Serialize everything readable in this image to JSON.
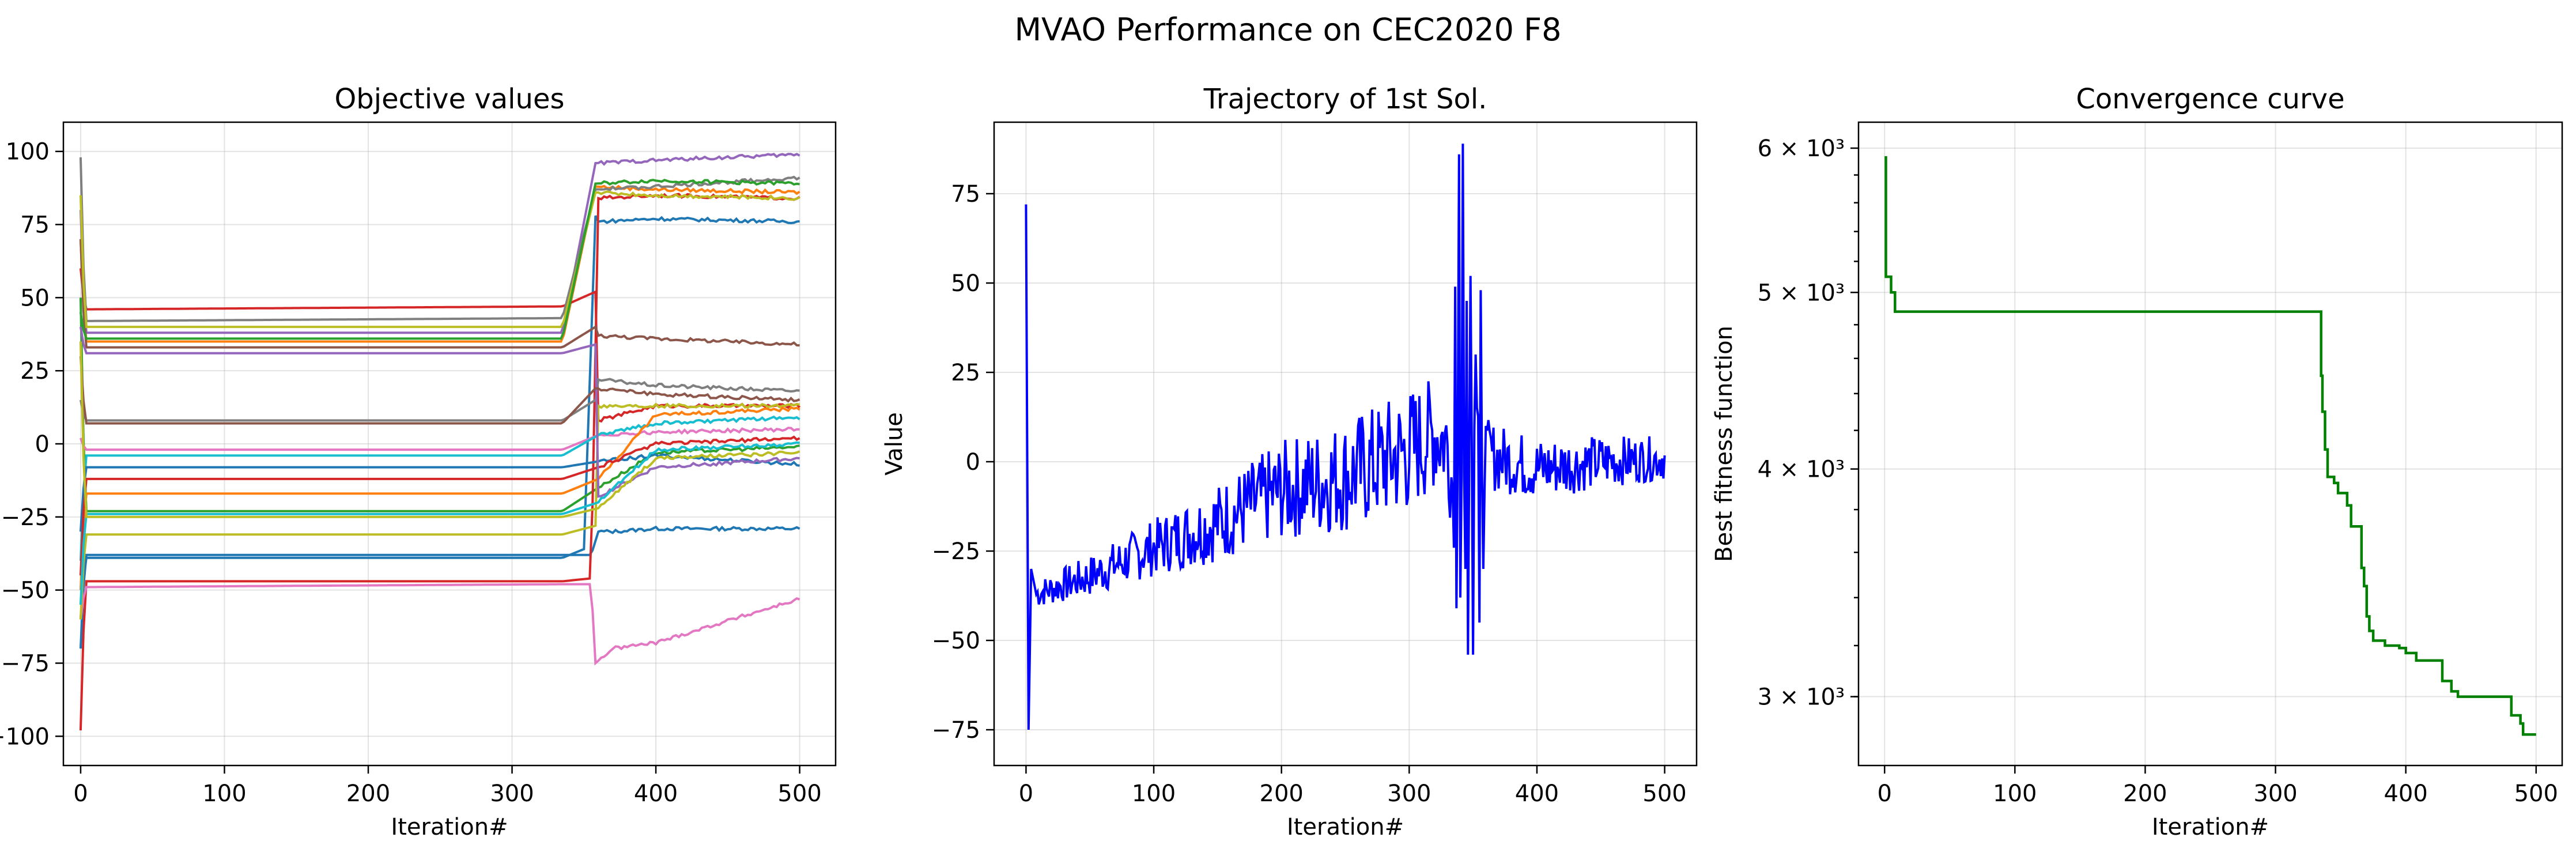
{
  "figure": {
    "title": "MVAO Performance on CEC2020 F8"
  },
  "chart_data": [
    {
      "type": "line",
      "title": "Objective values",
      "xlabel": "Iteration#",
      "ylabel": "Value",
      "xlim": [
        -12,
        525
      ],
      "ylim": [
        -110,
        110
      ],
      "xticks": [
        0,
        100,
        200,
        300,
        400,
        500
      ],
      "yticks": [
        -100,
        -75,
        -50,
        -25,
        0,
        25,
        50,
        75,
        100
      ],
      "grid": true,
      "series": [
        {
          "color": "#1f77b4",
          "points": [
            [
              0,
              -70
            ],
            [
              3,
              -38
            ],
            [
              335,
              -38
            ],
            [
              355,
              -38
            ],
            [
              360,
              -30
            ],
            [
              370,
              -30
            ],
            [
              400,
              -29
            ],
            [
              500,
              -29
            ]
          ]
        },
        {
          "color": "#1f77b4",
          "points": [
            [
              0,
              -60
            ],
            [
              3,
              -39
            ],
            [
              335,
              -39
            ],
            [
              350,
              -36
            ],
            [
              358,
              78
            ],
            [
              360,
              76
            ],
            [
              400,
              77
            ],
            [
              500,
              76
            ]
          ]
        },
        {
          "color": "#ff7f0e",
          "points": [
            [
              0,
              70
            ],
            [
              3,
              35
            ],
            [
              335,
              35
            ],
            [
              358,
              88
            ],
            [
              400,
              87
            ],
            [
              500,
              86
            ]
          ]
        },
        {
          "color": "#2ca02c",
          "points": [
            [
              0,
              50
            ],
            [
              3,
              -23
            ],
            [
              335,
              -23
            ],
            [
              360,
              -15
            ],
            [
              400,
              -3
            ],
            [
              500,
              -1
            ]
          ]
        },
        {
          "color": "#d62728",
          "points": [
            [
              0,
              -98
            ],
            [
              3,
              -47
            ],
            [
              335,
              -47
            ],
            [
              355,
              -46
            ],
            [
              360,
              84
            ],
            [
              400,
              85
            ],
            [
              500,
              84
            ]
          ]
        },
        {
          "color": "#d62728",
          "points": [
            [
              0,
              60
            ],
            [
              3,
              46
            ],
            [
              335,
              47
            ],
            [
              358,
              52
            ],
            [
              360,
              8
            ],
            [
              400,
              13
            ],
            [
              500,
              13
            ]
          ]
        },
        {
          "color": "#9467bd",
          "points": [
            [
              0,
              80
            ],
            [
              3,
              38
            ],
            [
              335,
              38
            ],
            [
              358,
              96
            ],
            [
              400,
              97
            ],
            [
              500,
              99
            ]
          ]
        },
        {
          "color": "#8c564b",
          "points": [
            [
              0,
              70
            ],
            [
              3,
              33
            ],
            [
              335,
              33
            ],
            [
              358,
              40
            ],
            [
              360,
              37
            ],
            [
              400,
              36
            ],
            [
              500,
              34
            ]
          ]
        },
        {
          "color": "#e377c2",
          "points": [
            [
              0,
              -60
            ],
            [
              3,
              -49
            ],
            [
              335,
              -48
            ],
            [
              355,
              -48
            ],
            [
              358,
              -75
            ],
            [
              370,
              -70
            ],
            [
              400,
              -68
            ],
            [
              500,
              -53
            ]
          ]
        },
        {
          "color": "#e377c2",
          "points": [
            [
              0,
              2
            ],
            [
              3,
              -2
            ],
            [
              335,
              -2
            ],
            [
              360,
              3
            ],
            [
              400,
              4
            ],
            [
              500,
              5
            ]
          ]
        },
        {
          "color": "#7f7f7f",
          "points": [
            [
              0,
              98
            ],
            [
              3,
              42
            ],
            [
              335,
              43
            ],
            [
              358,
              87
            ],
            [
              400,
              88
            ],
            [
              500,
              91
            ]
          ]
        },
        {
          "color": "#7f7f7f",
          "points": [
            [
              0,
              15
            ],
            [
              3,
              8
            ],
            [
              335,
              8
            ],
            [
              358,
              15
            ],
            [
              360,
              22
            ],
            [
              400,
              20
            ],
            [
              500,
              18
            ]
          ]
        },
        {
          "color": "#bcbd22",
          "points": [
            [
              0,
              85
            ],
            [
              3,
              40
            ],
            [
              335,
              40
            ],
            [
              358,
              86
            ],
            [
              400,
              85
            ],
            [
              500,
              84
            ]
          ]
        },
        {
          "color": "#bcbd22",
          "points": [
            [
              0,
              -60
            ],
            [
              3,
              -31
            ],
            [
              335,
              -31
            ],
            [
              358,
              -28
            ],
            [
              360,
              13
            ],
            [
              400,
              13
            ],
            [
              500,
              13
            ]
          ]
        },
        {
          "color": "#17becf",
          "points": [
            [
              0,
              -40
            ],
            [
              3,
              -4
            ],
            [
              335,
              -4
            ],
            [
              360,
              3
            ],
            [
              400,
              7
            ],
            [
              500,
              9
            ]
          ]
        },
        {
          "color": "#1f77b4",
          "points": [
            [
              0,
              -30
            ],
            [
              3,
              -8
            ],
            [
              335,
              -8
            ],
            [
              360,
              -6
            ],
            [
              400,
              -4
            ],
            [
              500,
              -7
            ]
          ]
        },
        {
          "color": "#ff7f0e",
          "points": [
            [
              0,
              -50
            ],
            [
              3,
              -17
            ],
            [
              335,
              -17
            ],
            [
              360,
              -12
            ],
            [
              400,
              10
            ],
            [
              500,
              12
            ]
          ]
        },
        {
          "color": "#2ca02c",
          "points": [
            [
              0,
              45
            ],
            [
              3,
              36
            ],
            [
              335,
              36
            ],
            [
              358,
              89
            ],
            [
              400,
              90
            ],
            [
              500,
              89
            ]
          ]
        },
        {
          "color": "#d62728",
          "points": [
            [
              0,
              -45
            ],
            [
              3,
              -12
            ],
            [
              335,
              -12
            ],
            [
              360,
              -8
            ],
            [
              400,
              0
            ],
            [
              500,
              2
            ]
          ]
        },
        {
          "color": "#9467bd",
          "points": [
            [
              0,
              40
            ],
            [
              3,
              31
            ],
            [
              335,
              31
            ],
            [
              358,
              34
            ],
            [
              360,
              -18
            ],
            [
              400,
              -8
            ],
            [
              500,
              -5
            ]
          ]
        },
        {
          "color": "#8c564b",
          "points": [
            [
              0,
              30
            ],
            [
              3,
              7
            ],
            [
              335,
              7
            ],
            [
              358,
              19
            ],
            [
              400,
              17
            ],
            [
              500,
              15
            ]
          ]
        },
        {
          "color": "#17becf",
          "points": [
            [
              0,
              -55
            ],
            [
              3,
              -24
            ],
            [
              335,
              -24
            ],
            [
              360,
              -20
            ],
            [
              400,
              -2
            ],
            [
              500,
              0
            ]
          ]
        },
        {
          "color": "#bcbd22",
          "points": [
            [
              0,
              35
            ],
            [
              3,
              -25
            ],
            [
              335,
              -25
            ],
            [
              360,
              -22
            ],
            [
              400,
              -5
            ],
            [
              500,
              -3
            ]
          ]
        }
      ]
    },
    {
      "type": "line",
      "title": "Trajectory of 1st Sol.",
      "xlabel": "Iteration#",
      "ylabel": "Value",
      "xlim": [
        -25,
        525
      ],
      "ylim": [
        -85,
        95
      ],
      "xticks": [
        0,
        100,
        200,
        300,
        400,
        500
      ],
      "yticks": [
        -75,
        -50,
        -25,
        0,
        25,
        50,
        75
      ],
      "grid": true,
      "color": "#0000ff",
      "anchors": [
        [
          0,
          72
        ],
        [
          2,
          -75
        ],
        [
          4,
          -30
        ],
        [
          8,
          -37
        ],
        [
          50,
          -32
        ],
        [
          100,
          -24
        ],
        [
          150,
          -17
        ],
        [
          200,
          -8
        ],
        [
          250,
          -4
        ],
        [
          300,
          3
        ],
        [
          320,
          8
        ],
        [
          330,
          5
        ],
        [
          335,
          -10
        ],
        [
          340,
          5
        ],
        [
          345,
          8
        ],
        [
          360,
          2
        ],
        [
          400,
          -2
        ],
        [
          450,
          0
        ],
        [
          500,
          1
        ]
      ],
      "spikes": [
        [
          336,
          49
        ],
        [
          337,
          -41
        ],
        [
          339,
          86
        ],
        [
          340,
          -38
        ],
        [
          342,
          89
        ],
        [
          344,
          -30
        ],
        [
          345,
          45
        ],
        [
          346,
          -54
        ],
        [
          348,
          52
        ],
        [
          350,
          -54
        ],
        [
          352,
          30
        ],
        [
          355,
          -45
        ],
        [
          356,
          48
        ],
        [
          358,
          -30
        ],
        [
          360,
          10
        ]
      ],
      "noise": [
        [
          8,
          4
        ],
        [
          100,
          8
        ],
        [
          200,
          14
        ],
        [
          300,
          18
        ],
        [
          330,
          15
        ],
        [
          360,
          10
        ],
        [
          500,
          6
        ]
      ]
    },
    {
      "type": "line",
      "title": "Convergence curve",
      "xlabel": "Iteration#",
      "ylabel": "Best fitness function",
      "yscale": "log",
      "xlim": [
        -20,
        520
      ],
      "ylim": [
        2750,
        6200
      ],
      "xticks": [
        0,
        100,
        200,
        300,
        400,
        500
      ],
      "yticks": [
        {
          "value": 3000,
          "label": "3 × 10³"
        },
        {
          "value": 4000,
          "label": "4 × 10³"
        },
        {
          "value": 5000,
          "label": "5 × 10³"
        },
        {
          "value": 6000,
          "label": "6 × 10³"
        }
      ],
      "grid": true,
      "color": "#008000",
      "points": [
        [
          0,
          5930
        ],
        [
          1,
          5100
        ],
        [
          4,
          5100
        ],
        [
          5,
          5000
        ],
        [
          8,
          4880
        ],
        [
          333,
          4880
        ],
        [
          335,
          4500
        ],
        [
          336,
          4300
        ],
        [
          338,
          4100
        ],
        [
          340,
          3960
        ],
        [
          345,
          3930
        ],
        [
          348,
          3880
        ],
        [
          355,
          3820
        ],
        [
          358,
          3720
        ],
        [
          365,
          3720
        ],
        [
          366,
          3530
        ],
        [
          368,
          3450
        ],
        [
          370,
          3320
        ],
        [
          372,
          3260
        ],
        [
          375,
          3220
        ],
        [
          380,
          3220
        ],
        [
          384,
          3200
        ],
        [
          395,
          3190
        ],
        [
          400,
          3170
        ],
        [
          405,
          3170
        ],
        [
          408,
          3140
        ],
        [
          425,
          3140
        ],
        [
          428,
          3060
        ],
        [
          435,
          3020
        ],
        [
          440,
          3000
        ],
        [
          480,
          3000
        ],
        [
          481,
          2930
        ],
        [
          488,
          2900
        ],
        [
          490,
          2860
        ],
        [
          500,
          2860
        ]
      ]
    }
  ]
}
